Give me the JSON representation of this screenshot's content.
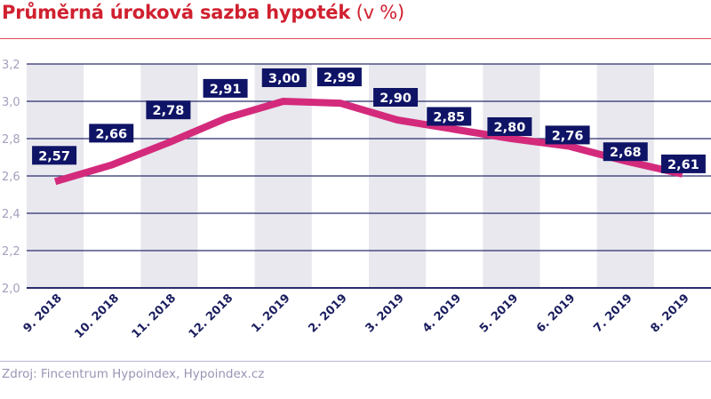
{
  "title": {
    "main": "Průměrná úroková sazba hypoték",
    "unit": " (v %)"
  },
  "source": "Zdroj: Fincentrum Hypoindex, Hypoindex.cz",
  "colors": {
    "title": "#d0202f",
    "line": "#d42a7c",
    "label_bg": "#0f1466",
    "label_text": "#ffffff",
    "grid": "#2a2d6e",
    "band": "#e8e8ee",
    "axis_text": "#a3a1bd",
    "category_text": "#1a1d5e"
  },
  "chart_data": {
    "type": "line",
    "title": "Průměrná úroková sazba hypoték (v %)",
    "xlabel": "",
    "ylabel": "",
    "categories": [
      "9. 2018",
      "10. 2018",
      "11. 2018",
      "12. 2018",
      "1. 2019",
      "2. 2019",
      "3. 2019",
      "4. 2019",
      "5. 2019",
      "6. 2019",
      "7. 2019",
      "8. 2019"
    ],
    "series": [
      {
        "name": "Průměrná úroková sazba hypoték",
        "values": [
          2.57,
          2.66,
          2.78,
          2.91,
          3.0,
          2.99,
          2.9,
          2.85,
          2.8,
          2.76,
          2.68,
          2.61
        ],
        "labels": [
          "2,57",
          "2,66",
          "2,78",
          "2,91",
          "3,00",
          "2,99",
          "2,90",
          "2,85",
          "2,80",
          "2,76",
          "2,68",
          "2,61"
        ]
      }
    ],
    "ylim": [
      2.0,
      3.2
    ],
    "yticks": [
      2.0,
      2.2,
      2.4,
      2.6,
      2.8,
      3.0,
      3.2
    ],
    "ytick_labels": [
      "2,0",
      "2,2",
      "2,4",
      "2,6",
      "2,8",
      "3,0",
      "3,2"
    ],
    "grid": true,
    "legend": "none"
  }
}
